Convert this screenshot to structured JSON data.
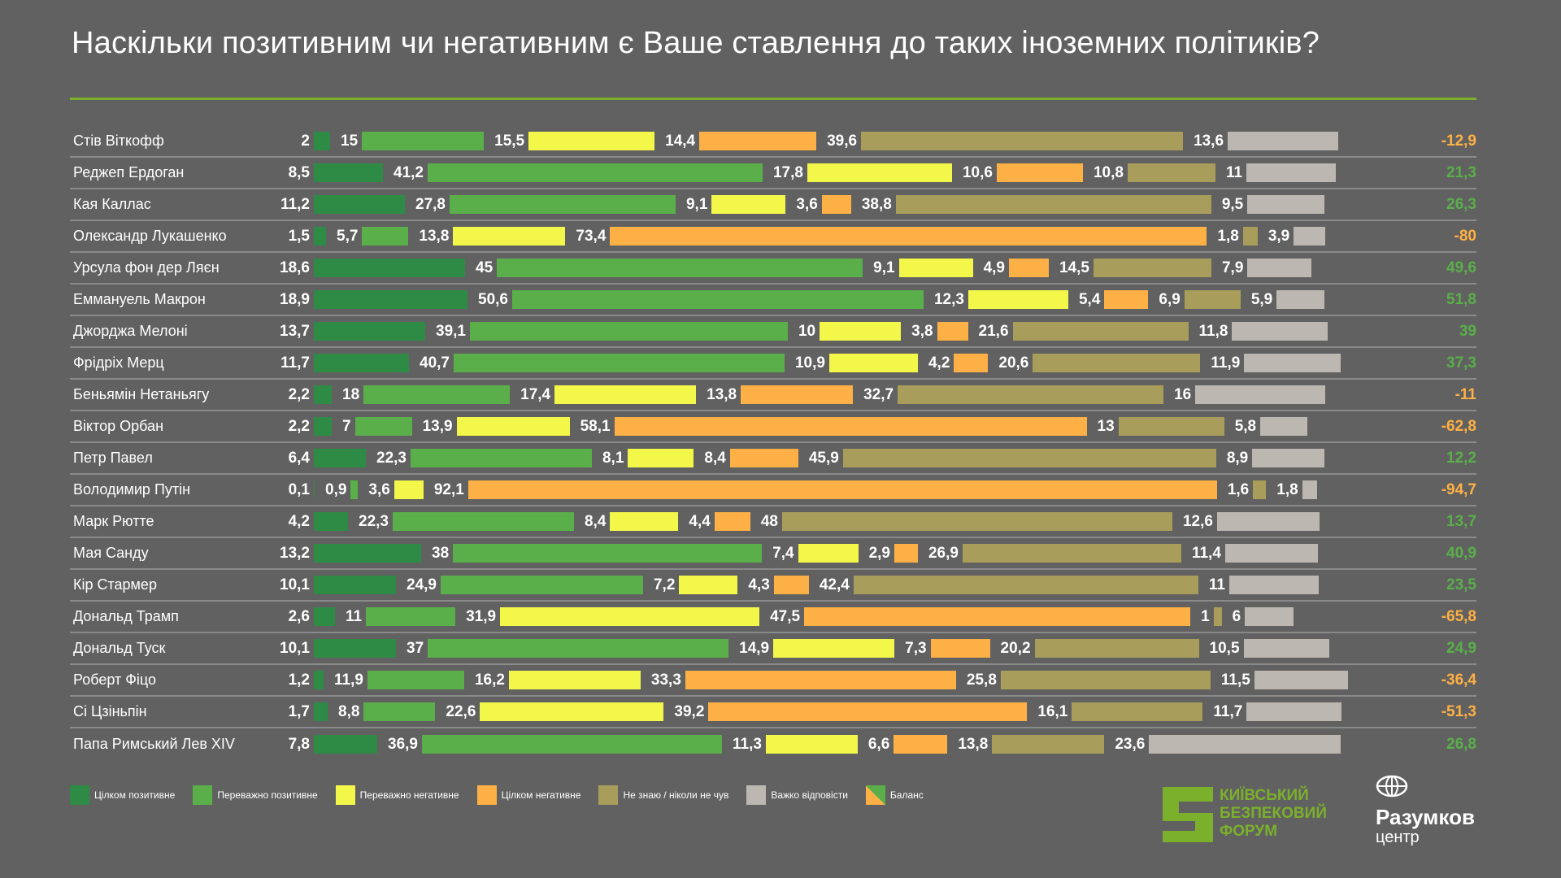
{
  "title": "Наскільки позитивним чи негативним є Ваше ставлення до таких іноземних політиків?",
  "colors": {
    "fully_positive": "#2e8b45",
    "mostly_positive": "#5aaf4a",
    "mostly_negative": "#f3f74a",
    "fully_negative": "#fdb045",
    "dont_know": "#a89d5a",
    "hard_to_say": "#bcb7b0",
    "balance_positive": "#5aaf4a",
    "balance_negative": "#fdb045"
  },
  "chart_data": {
    "type": "bar",
    "orientation": "horizontal",
    "stacked": false,
    "title": "Наскільки позитивним чи негативним є Ваше ставлення до таких іноземних політиків?",
    "series_names": [
      "Цілком позитивне",
      "Переважно позитивне",
      "Переважно негативне",
      "Цілком негативне",
      "Не знаю / ніколи не чув",
      "Важко відповісти"
    ],
    "legend": [
      "Цілком позитивне",
      "Переважно позитивне",
      "Переважно негативне",
      "Цілком негативне",
      "Не знаю / ніколи не чув",
      "Важко відповісти",
      "Баланс"
    ],
    "legend_placement": "bottom-left",
    "rows": [
      {
        "name": "Стів Віткофф",
        "values": [
          2,
          15,
          15.5,
          14.4,
          39.6,
          13.6
        ],
        "labels": [
          "2",
          "15",
          "15,5",
          "14,4",
          "39,6",
          "13,6"
        ],
        "balance": -12.9,
        "balance_label": "-12,9"
      },
      {
        "name": "Реджеп Ердоган",
        "values": [
          8.5,
          41.2,
          17.8,
          10.6,
          10.8,
          11
        ],
        "labels": [
          "8,5",
          "41,2",
          "17,8",
          "10,6",
          "10,8",
          "11"
        ],
        "balance": 21.3,
        "balance_label": "21,3"
      },
      {
        "name": "Кая Каллас",
        "values": [
          11.2,
          27.8,
          9.1,
          3.6,
          38.8,
          9.5
        ],
        "labels": [
          "11,2",
          "27,8",
          "9,1",
          "3,6",
          "38,8",
          "9,5"
        ],
        "balance": 26.3,
        "balance_label": "26,3"
      },
      {
        "name": "Олександр Лукашенко",
        "values": [
          1.5,
          5.7,
          13.8,
          73.4,
          1.8,
          3.9
        ],
        "labels": [
          "1,5",
          "5,7",
          "13,8",
          "73,4",
          "1,8",
          "3,9"
        ],
        "balance": -80,
        "balance_label": "-80"
      },
      {
        "name": "Урсула фон дер Ляєн",
        "values": [
          18.6,
          45,
          9.1,
          4.9,
          14.5,
          7.9
        ],
        "labels": [
          "18,6",
          "45",
          "9,1",
          "4,9",
          "14,5",
          "7,9"
        ],
        "balance": 49.6,
        "balance_label": "49,6"
      },
      {
        "name": "Еммануель Макрон",
        "values": [
          18.9,
          50.6,
          12.3,
          5.4,
          6.9,
          5.9
        ],
        "labels": [
          "18,9",
          "50,6",
          "12,3",
          "5,4",
          "6,9",
          "5,9"
        ],
        "balance": 51.8,
        "balance_label": "51,8"
      },
      {
        "name": "Джорджа Мелоні",
        "values": [
          13.7,
          39.1,
          10,
          3.8,
          21.6,
          11.8
        ],
        "labels": [
          "13,7",
          "39,1",
          "10",
          "3,8",
          "21,6",
          "11,8"
        ],
        "balance": 39,
        "balance_label": "39"
      },
      {
        "name": "Фрідріх Мерц",
        "values": [
          11.7,
          40.7,
          10.9,
          4.2,
          20.6,
          11.9
        ],
        "labels": [
          "11,7",
          "40,7",
          "10,9",
          "4,2",
          "20,6",
          "11,9"
        ],
        "balance": 37.3,
        "balance_label": "37,3"
      },
      {
        "name": "Беньямін Нетаньягу",
        "values": [
          2.2,
          18,
          17.4,
          13.8,
          32.7,
          16
        ],
        "labels": [
          "2,2",
          "18",
          "17,4",
          "13,8",
          "32,7",
          "16"
        ],
        "balance": -11,
        "balance_label": "-11"
      },
      {
        "name": "Віктор Орбан",
        "values": [
          2.2,
          7,
          13.9,
          58.1,
          13,
          5.8
        ],
        "labels": [
          "2,2",
          "7",
          "13,9",
          "58,1",
          "13",
          "5,8"
        ],
        "balance": -62.8,
        "balance_label": "-62,8"
      },
      {
        "name": "Петр Павел",
        "values": [
          6.4,
          22.3,
          8.1,
          8.4,
          45.9,
          8.9
        ],
        "labels": [
          "6,4",
          "22,3",
          "8,1",
          "8,4",
          "45,9",
          "8,9"
        ],
        "balance": 12.2,
        "balance_label": "12,2"
      },
      {
        "name": "Володимир Путін",
        "values": [
          0.1,
          0.9,
          3.6,
          92.1,
          1.6,
          1.8
        ],
        "labels": [
          "0,1",
          "0,9",
          "3,6",
          "92,1",
          "1,6",
          "1,8"
        ],
        "balance": -94.7,
        "balance_label": "-94,7"
      },
      {
        "name": "Марк Рютте",
        "values": [
          4.2,
          22.3,
          8.4,
          4.4,
          48,
          12.6
        ],
        "labels": [
          "4,2",
          "22,3",
          "8,4",
          "4,4",
          "48",
          "12,6"
        ],
        "balance": 13.7,
        "balance_label": "13,7"
      },
      {
        "name": "Мая Санду",
        "values": [
          13.2,
          38,
          7.4,
          2.9,
          26.9,
          11.4
        ],
        "labels": [
          "13,2",
          "38",
          "7,4",
          "2,9",
          "26,9",
          "11,4"
        ],
        "balance": 40.9,
        "balance_label": "40,9"
      },
      {
        "name": "Кір Стармер",
        "values": [
          10.1,
          24.9,
          7.2,
          4.3,
          42.4,
          11
        ],
        "labels": [
          "10,1",
          "24,9",
          "7,2",
          "4,3",
          "42,4",
          "11"
        ],
        "balance": 23.5,
        "balance_label": "23,5"
      },
      {
        "name": "Дональд Трамп",
        "values": [
          2.6,
          11,
          31.9,
          47.5,
          1,
          6
        ],
        "labels": [
          "2,6",
          "11",
          "31,9",
          "47,5",
          "1",
          "6"
        ],
        "balance": -65.8,
        "balance_label": "-65,8"
      },
      {
        "name": "Дональд Туск",
        "values": [
          10.1,
          37,
          14.9,
          7.3,
          20.2,
          10.5
        ],
        "labels": [
          "10,1",
          "37",
          "14,9",
          "7,3",
          "20,2",
          "10,5"
        ],
        "balance": 24.9,
        "balance_label": "24,9"
      },
      {
        "name": "Роберт Фіцо",
        "values": [
          1.2,
          11.9,
          16.2,
          33.3,
          25.8,
          11.5
        ],
        "labels": [
          "1,2",
          "11,9",
          "16,2",
          "33,3",
          "25,8",
          "11,5"
        ],
        "balance": -36.4,
        "balance_label": "-36,4"
      },
      {
        "name": "Сі Цзіньпін",
        "values": [
          1.7,
          8.8,
          22.6,
          39.2,
          16.1,
          11.7
        ],
        "labels": [
          "1,7",
          "8,8",
          "22,6",
          "39,2",
          "16,1",
          "11,7"
        ],
        "balance": -51.3,
        "balance_label": "-51,3"
      },
      {
        "name": "Папа Римський Лев XIV",
        "values": [
          7.8,
          36.9,
          11.3,
          6.6,
          13.8,
          23.6
        ],
        "labels": [
          "7,8",
          "36,9",
          "11,3",
          "6,6",
          "13,8",
          "23,6"
        ],
        "balance": 26.8,
        "balance_label": "26,8"
      }
    ]
  },
  "logos": {
    "kbf": [
      "КИЇВСЬКИЙ",
      "БЕЗПЕКОВИЙ",
      "ФОРУМ"
    ],
    "razumkov_name": "Разумков",
    "razumkov_sub": "центр"
  }
}
